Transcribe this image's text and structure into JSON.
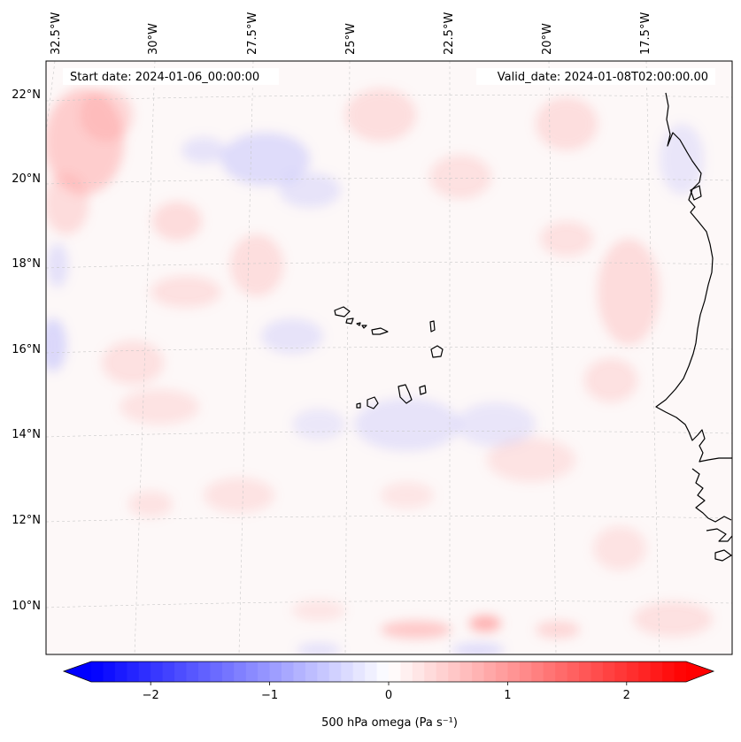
{
  "map": {
    "start_date_label": "Start date: 2024-01-06_00:00:00",
    "valid_date_label": "Valid_date: 2024-01-08T02:00:00.00",
    "lon_labels": [
      "32.5°W",
      "30°W",
      "27.5°W",
      "25°W",
      "22.5°W",
      "20°W",
      "17.5°W"
    ],
    "lat_labels": [
      "22°N",
      "20°N",
      "18°N",
      "16°N",
      "14°N",
      "12°N",
      "10°N"
    ],
    "extent": {
      "lon_min": -33.0,
      "lon_max": -15.5,
      "lat_min": 8.8,
      "lat_max": 22.8
    },
    "gridlines": true,
    "projection": "lambert-conformal"
  },
  "colorbar": {
    "label": "500 hPa omega (Pa s⁻¹)",
    "ticks": [
      "−2",
      "−1",
      "0",
      "1",
      "2"
    ],
    "tick_values": [
      -2,
      -1,
      0,
      1,
      2
    ],
    "range": [
      -2.5,
      2.5
    ],
    "extend": "both",
    "colormap": "bwr",
    "colors": {
      "negative": "#0000ff",
      "zero": "#ffffff",
      "positive": "#ff0000"
    }
  },
  "coastline_color": "#000000"
}
